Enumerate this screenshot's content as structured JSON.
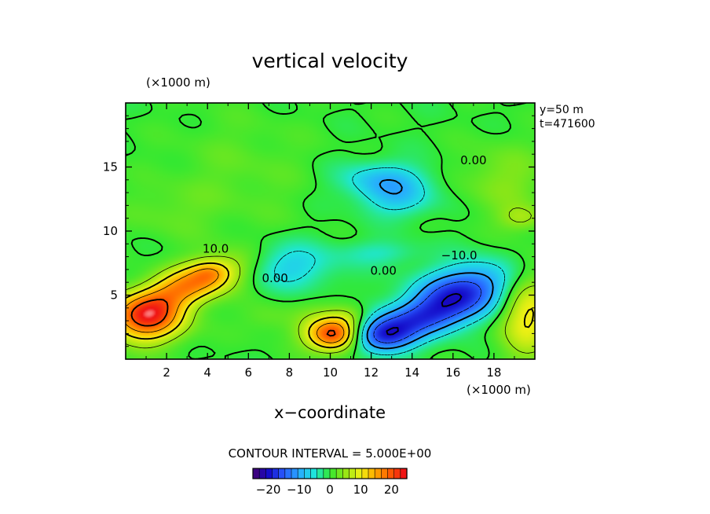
{
  "chart_data": {
    "type": "heatmap",
    "title": "vertical velocity",
    "xlabel": "x−coordinate",
    "x_unit": "(×1000 m)",
    "y_unit": "(×1000 m)",
    "annotations": [
      "y=50 m",
      "t=471600"
    ],
    "xlim": [
      0,
      20
    ],
    "ylim": [
      0,
      20
    ],
    "x_ticks": [
      2,
      4,
      6,
      8,
      10,
      12,
      14,
      16,
      18
    ],
    "y_ticks": [
      5,
      10,
      15
    ],
    "contour_interval_label": "CONTOUR INTERVAL = 5.000E+00",
    "contour_interval": 5.0,
    "contour_labels": [
      {
        "text": "10.0",
        "x": 4.4,
        "y": 8.3
      },
      {
        "text": "0.00",
        "x": 7.3,
        "y": 6.0
      },
      {
        "text": "0.00",
        "x": 12.6,
        "y": 6.6
      },
      {
        "text": "−10.0",
        "x": 16.3,
        "y": 7.8
      },
      {
        "text": "0.00",
        "x": 17.0,
        "y": 15.2
      }
    ],
    "colorbar": {
      "range": [
        -25,
        25
      ],
      "tick_values": [
        -20,
        -10,
        0,
        10,
        20
      ],
      "tick_labels": [
        "−20",
        "−10",
        "0",
        "10",
        "20"
      ]
    },
    "features": [
      {
        "kind": "updraft",
        "x": 3.2,
        "y": 5.6,
        "peak": 20
      },
      {
        "kind": "updraft",
        "x": 1.0,
        "y": 3.2,
        "peak": 22
      },
      {
        "kind": "updraft",
        "x": 10.2,
        "y": 1.8,
        "peak": 22
      },
      {
        "kind": "updraft",
        "x": 19.5,
        "y": 3.5,
        "peak": 10
      },
      {
        "kind": "downdraft",
        "x": 16.4,
        "y": 5.2,
        "peak": -18
      },
      {
        "kind": "downdraft",
        "x": 12.8,
        "y": 2.0,
        "peak": -15
      },
      {
        "kind": "downdraft",
        "x": 8.0,
        "y": 7.5,
        "peak": -7
      },
      {
        "kind": "downdraft",
        "x": 12.5,
        "y": 14.0,
        "peak": -8
      },
      {
        "kind": "downdraft",
        "x": 13.2,
        "y": 12.0,
        "peak": -7
      }
    ]
  },
  "colors": {
    "zero_green": "#34e834",
    "frame": "#000000"
  }
}
